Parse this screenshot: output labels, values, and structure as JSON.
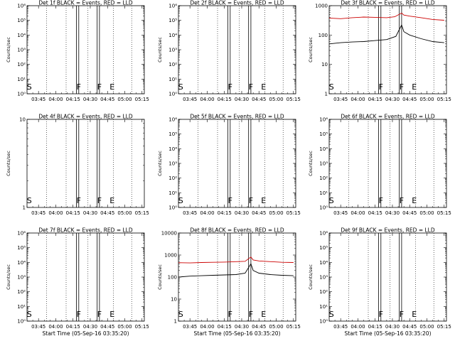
{
  "chart_data": [
    {
      "type": "line",
      "title": "Det 1f BLACK = Events, RED = LLD",
      "ylabel": "Counts/sec",
      "xlabel": "",
      "x_ticks": [
        "03:45",
        "04:00",
        "04:15",
        "04:30",
        "04:45",
        "05:00",
        "05:15"
      ],
      "y_scale": "log",
      "ylim": [
        1,
        1000000
      ],
      "y_ticks": [
        1,
        10,
        100,
        1000,
        10000,
        100000,
        1000000
      ],
      "y_tick_labels": [
        "10⁰",
        "10¹",
        "10²",
        "10³",
        "10⁴",
        "10⁵",
        "10⁶"
      ],
      "time_range": [
        "03:35",
        "05:17"
      ],
      "markers": [
        {
          "label": "S",
          "time": "03:37"
        },
        {
          "label": "F",
          "time": "04:20"
        },
        {
          "label": "F",
          "time": "04:38"
        },
        {
          "label": "E",
          "time": "04:49"
        }
      ],
      "solid_lines": [
        "04:18",
        "04:20",
        "04:36",
        "04:38"
      ],
      "dotted_lines": [
        "03:52",
        "04:09",
        "04:28",
        "04:50",
        "05:06"
      ],
      "series": []
    },
    {
      "type": "line",
      "title": "Det 2f BLACK = Events, RED = LLD",
      "ylabel": "Counts/sec",
      "xlabel": "",
      "x_ticks": [
        "03:45",
        "04:00",
        "04:15",
        "04:30",
        "04:45",
        "05:00",
        "05:15"
      ],
      "y_scale": "log",
      "ylim": [
        1,
        1000000
      ],
      "y_ticks": [
        1,
        10,
        100,
        1000,
        10000,
        100000,
        1000000
      ],
      "y_tick_labels": [
        "10⁰",
        "10¹",
        "10²",
        "10³",
        "10⁴",
        "10⁵",
        "10⁶"
      ],
      "time_range": [
        "03:35",
        "05:17"
      ],
      "markers": [
        {
          "label": "S",
          "time": "03:37"
        },
        {
          "label": "F",
          "time": "04:20"
        },
        {
          "label": "F",
          "time": "04:38"
        },
        {
          "label": "E",
          "time": "04:49"
        }
      ],
      "solid_lines": [
        "04:18",
        "04:20",
        "04:36",
        "04:38"
      ],
      "dotted_lines": [
        "03:52",
        "04:09",
        "04:28",
        "04:50",
        "05:06"
      ],
      "series": []
    },
    {
      "type": "line",
      "title": "Det 3f BLACK = Events, RED = LLD",
      "ylabel": "Counts/sec",
      "xlabel": "",
      "x_ticks": [
        "03:45",
        "04:00",
        "04:15",
        "04:30",
        "04:45",
        "05:00",
        "05:15"
      ],
      "y_scale": "log",
      "ylim": [
        1,
        1000
      ],
      "y_ticks": [
        1,
        10,
        100,
        1000
      ],
      "y_tick_labels": [
        "1",
        "10",
        "100",
        "1000"
      ],
      "time_range": [
        "03:35",
        "05:17"
      ],
      "markers": [
        {
          "label": "S",
          "time": "03:37"
        },
        {
          "label": "F",
          "time": "04:20"
        },
        {
          "label": "F",
          "time": "04:38"
        },
        {
          "label": "E",
          "time": "04:49"
        }
      ],
      "solid_lines": [
        "04:18",
        "04:20",
        "04:36",
        "04:38"
      ],
      "dotted_lines": [
        "03:52",
        "04:09",
        "04:28",
        "04:50",
        "05:06"
      ],
      "series": [
        {
          "color": "#cc0000",
          "points": [
            [
              "03:35",
              380
            ],
            [
              "03:45",
              360
            ],
            [
              "03:55",
              390
            ],
            [
              "04:05",
              410
            ],
            [
              "04:15",
              400
            ],
            [
              "04:25",
              390
            ],
            [
              "04:32",
              420
            ],
            [
              "04:38",
              560
            ],
            [
              "04:40",
              480
            ],
            [
              "04:45",
              440
            ],
            [
              "04:55",
              390
            ],
            [
              "05:05",
              340
            ],
            [
              "05:15",
              320
            ]
          ]
        },
        {
          "color": "#000000",
          "points": [
            [
              "03:35",
              50
            ],
            [
              "03:45",
              55
            ],
            [
              "03:55",
              58
            ],
            [
              "04:05",
              60
            ],
            [
              "04:15",
              65
            ],
            [
              "04:25",
              70
            ],
            [
              "04:33",
              90
            ],
            [
              "04:38",
              220
            ],
            [
              "04:40",
              130
            ],
            [
              "04:45",
              100
            ],
            [
              "04:55",
              75
            ],
            [
              "05:05",
              60
            ],
            [
              "05:15",
              55
            ]
          ]
        }
      ]
    },
    {
      "type": "line",
      "title": "Det 4f BLACK = Events, RED = LLD",
      "ylabel": "Counts/sec",
      "xlabel": "",
      "x_ticks": [
        "03:45",
        "04:00",
        "04:15",
        "04:30",
        "04:45",
        "05:00",
        "05:15"
      ],
      "y_scale": "log",
      "ylim": [
        1,
        10
      ],
      "y_ticks": [
        1,
        10
      ],
      "y_tick_labels": [
        "1",
        "10"
      ],
      "time_range": [
        "03:35",
        "05:17"
      ],
      "markers": [
        {
          "label": "S",
          "time": "03:37"
        },
        {
          "label": "F",
          "time": "04:20"
        },
        {
          "label": "F",
          "time": "04:38"
        },
        {
          "label": "E",
          "time": "04:49"
        }
      ],
      "solid_lines": [
        "04:18",
        "04:20",
        "04:36",
        "04:38"
      ],
      "dotted_lines": [
        "03:52",
        "04:09",
        "04:28",
        "04:50",
        "05:06"
      ],
      "series": []
    },
    {
      "type": "line",
      "title": "Det 5f BLACK = Events, RED = LLD",
      "ylabel": "Counts/sec",
      "xlabel": "",
      "x_ticks": [
        "03:45",
        "04:00",
        "04:15",
        "04:30",
        "04:45",
        "05:00",
        "05:15"
      ],
      "y_scale": "log",
      "ylim": [
        1,
        1000000
      ],
      "y_ticks": [
        1,
        10,
        100,
        1000,
        10000,
        100000,
        1000000
      ],
      "y_tick_labels": [
        "10⁰",
        "10¹",
        "10²",
        "10³",
        "10⁴",
        "10⁵",
        "10⁶"
      ],
      "time_range": [
        "03:35",
        "05:17"
      ],
      "markers": [
        {
          "label": "S",
          "time": "03:37"
        },
        {
          "label": "F",
          "time": "04:20"
        },
        {
          "label": "F",
          "time": "04:38"
        },
        {
          "label": "E",
          "time": "04:49"
        }
      ],
      "solid_lines": [
        "04:18",
        "04:20",
        "04:36",
        "04:38"
      ],
      "dotted_lines": [
        "03:52",
        "04:09",
        "04:28",
        "04:50",
        "05:06"
      ],
      "series": []
    },
    {
      "type": "line",
      "title": "Det 6f BLACK = Events, RED = LLD",
      "ylabel": "Counts/sec",
      "xlabel": "",
      "x_ticks": [
        "03:45",
        "04:00",
        "04:15",
        "04:30",
        "04:45",
        "05:00",
        "05:15"
      ],
      "y_scale": "log",
      "ylim": [
        1,
        1000000
      ],
      "y_ticks": [
        1,
        10,
        100,
        1000,
        10000,
        100000,
        1000000
      ],
      "y_tick_labels": [
        "10⁰",
        "10¹",
        "10²",
        "10³",
        "10⁴",
        "10⁵",
        "10⁶"
      ],
      "time_range": [
        "03:35",
        "05:17"
      ],
      "markers": [
        {
          "label": "S",
          "time": "03:37"
        },
        {
          "label": "F",
          "time": "04:20"
        },
        {
          "label": "F",
          "time": "04:38"
        },
        {
          "label": "E",
          "time": "04:49"
        }
      ],
      "solid_lines": [
        "04:18",
        "04:20",
        "04:36",
        "04:38"
      ],
      "dotted_lines": [
        "03:52",
        "04:09",
        "04:28",
        "04:50",
        "05:06"
      ],
      "series": []
    },
    {
      "type": "line",
      "title": "Det 7f BLACK = Events, RED = LLD",
      "ylabel": "Counts/sec",
      "xlabel": "Start Time (05-Sep-16 03:35:20)",
      "x_ticks": [
        "03:45",
        "04:00",
        "04:15",
        "04:30",
        "04:45",
        "05:00",
        "05:15"
      ],
      "y_scale": "log",
      "ylim": [
        1,
        1000000
      ],
      "y_ticks": [
        1,
        10,
        100,
        1000,
        10000,
        100000,
        1000000
      ],
      "y_tick_labels": [
        "10⁰",
        "10¹",
        "10²",
        "10³",
        "10⁴",
        "10⁵",
        "10⁶"
      ],
      "time_range": [
        "03:35",
        "05:17"
      ],
      "markers": [
        {
          "label": "S",
          "time": "03:37"
        },
        {
          "label": "F",
          "time": "04:20"
        },
        {
          "label": "F",
          "time": "04:38"
        },
        {
          "label": "E",
          "time": "04:49"
        }
      ],
      "solid_lines": [
        "04:18",
        "04:20",
        "04:36",
        "04:38"
      ],
      "dotted_lines": [
        "03:52",
        "04:09",
        "04:28",
        "04:50",
        "05:06"
      ],
      "series": []
    },
    {
      "type": "line",
      "title": "Det 8f BLACK = Events, RED = LLD",
      "ylabel": "Counts/sec",
      "xlabel": "Start Time (05-Sep-16 03:35:20)",
      "x_ticks": [
        "03:45",
        "04:00",
        "04:15",
        "04:30",
        "04:45",
        "05:00",
        "05:15"
      ],
      "y_scale": "log",
      "ylim": [
        1,
        10000
      ],
      "y_ticks": [
        1,
        10,
        100,
        1000,
        10000
      ],
      "y_tick_labels": [
        "1",
        "10",
        "100",
        "1000",
        "10000"
      ],
      "time_range": [
        "03:35",
        "05:17"
      ],
      "markers": [
        {
          "label": "S",
          "time": "03:37"
        },
        {
          "label": "F",
          "time": "04:20"
        },
        {
          "label": "F",
          "time": "04:38"
        },
        {
          "label": "E",
          "time": "04:49"
        }
      ],
      "solid_lines": [
        "04:18",
        "04:20",
        "04:36",
        "04:38"
      ],
      "dotted_lines": [
        "03:52",
        "04:09",
        "04:28",
        "04:50",
        "05:06"
      ],
      "series": [
        {
          "color": "#cc0000",
          "points": [
            [
              "03:35",
              450
            ],
            [
              "03:45",
              440
            ],
            [
              "03:55",
              460
            ],
            [
              "04:05",
              470
            ],
            [
              "04:15",
              480
            ],
            [
              "04:25",
              500
            ],
            [
              "04:33",
              520
            ],
            [
              "04:38",
              820
            ],
            [
              "04:40",
              600
            ],
            [
              "04:45",
              540
            ],
            [
              "04:55",
              500
            ],
            [
              "05:05",
              470
            ],
            [
              "05:15",
              460
            ]
          ]
        },
        {
          "color": "#000000",
          "points": [
            [
              "03:35",
              100
            ],
            [
              "03:45",
              110
            ],
            [
              "03:55",
              115
            ],
            [
              "04:05",
              120
            ],
            [
              "04:15",
              125
            ],
            [
              "04:25",
              130
            ],
            [
              "04:33",
              150
            ],
            [
              "04:38",
              400
            ],
            [
              "04:40",
              200
            ],
            [
              "04:45",
              150
            ],
            [
              "04:55",
              130
            ],
            [
              "05:05",
              120
            ],
            [
              "05:15",
              115
            ]
          ]
        }
      ]
    },
    {
      "type": "line",
      "title": "Det 9f BLACK = Events, RED = LLD",
      "ylabel": "Counts/sec",
      "xlabel": "Start Time (05-Sep-16 03:35:20)",
      "x_ticks": [
        "03:45",
        "04:00",
        "04:15",
        "04:30",
        "04:45",
        "05:00",
        "05:15"
      ],
      "y_scale": "log",
      "ylim": [
        1,
        1000000
      ],
      "y_ticks": [
        1,
        10,
        100,
        1000,
        10000,
        100000,
        1000000
      ],
      "y_tick_labels": [
        "10⁰",
        "10¹",
        "10²",
        "10³",
        "10⁴",
        "10⁵",
        "10⁶"
      ],
      "time_range": [
        "03:35",
        "05:17"
      ],
      "markers": [
        {
          "label": "S",
          "time": "03:37"
        },
        {
          "label": "F",
          "time": "04:20"
        },
        {
          "label": "F",
          "time": "04:38"
        },
        {
          "label": "E",
          "time": "04:49"
        }
      ],
      "solid_lines": [
        "04:18",
        "04:20",
        "04:36",
        "04:38"
      ],
      "dotted_lines": [
        "03:52",
        "04:09",
        "04:28",
        "04:50",
        "05:06"
      ],
      "series": []
    }
  ]
}
